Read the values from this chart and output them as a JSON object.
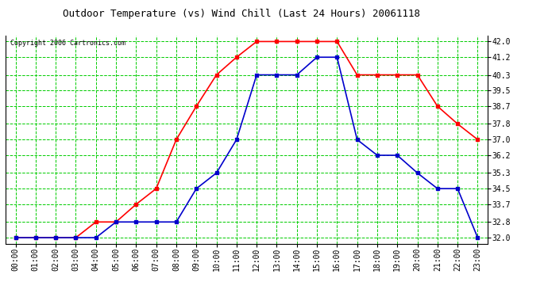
{
  "title": "Outdoor Temperature (vs) Wind Chill (Last 24 Hours) 20061118",
  "copyright": "Copyright 2006 Cartronics.com",
  "hours": [
    "00:00",
    "01:00",
    "02:00",
    "03:00",
    "04:00",
    "05:00",
    "06:00",
    "07:00",
    "08:00",
    "09:00",
    "10:00",
    "11:00",
    "12:00",
    "13:00",
    "14:00",
    "15:00",
    "16:00",
    "17:00",
    "18:00",
    "19:00",
    "20:00",
    "21:00",
    "22:00",
    "23:00"
  ],
  "outdoor_temp": [
    32.0,
    32.0,
    32.0,
    32.0,
    32.8,
    32.8,
    33.7,
    34.5,
    37.0,
    38.7,
    40.3,
    41.2,
    42.0,
    42.0,
    42.0,
    42.0,
    42.0,
    40.3,
    40.3,
    40.3,
    40.3,
    38.7,
    37.8,
    37.0
  ],
  "wind_chill": [
    32.0,
    32.0,
    32.0,
    32.0,
    32.0,
    32.8,
    32.8,
    32.8,
    32.8,
    34.5,
    35.3,
    37.0,
    40.3,
    40.3,
    40.3,
    41.2,
    41.2,
    37.0,
    36.2,
    36.2,
    35.3,
    34.5,
    34.5,
    32.0
  ],
  "temp_color": "#ff0000",
  "wind_color": "#0000cc",
  "grid_color": "#00cc00",
  "bg_color": "#ffffff",
  "plot_bg_color": "#ffffff",
  "y_ticks": [
    32.0,
    32.8,
    33.7,
    34.5,
    35.3,
    36.2,
    37.0,
    37.8,
    38.7,
    39.5,
    40.3,
    41.2,
    42.0
  ],
  "ylim": [
    31.7,
    42.3
  ],
  "title_fontsize": 9,
  "copyright_fontsize": 6,
  "tick_fontsize": 7,
  "marker": "s",
  "markersize": 3,
  "linewidth": 1.2
}
